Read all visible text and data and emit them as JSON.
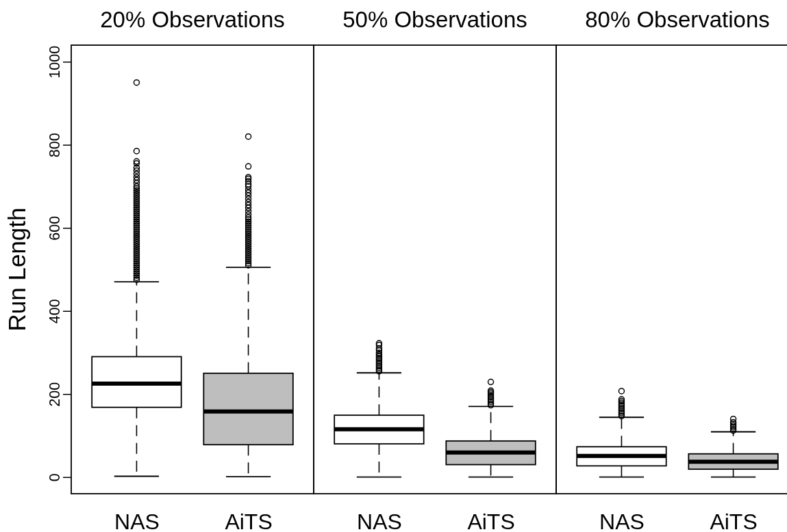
{
  "chart_data": [
    {
      "type": "box",
      "title": "20% Observations",
      "ylabel": "Run Length",
      "categories": [
        "NAS",
        "AiTS"
      ],
      "colors": [
        "#ffffff",
        "#bebebe"
      ],
      "ylim": [
        -40,
        1040
      ],
      "yticks": [
        0,
        200,
        400,
        600,
        800,
        1000
      ],
      "boxes": [
        {
          "low": 2,
          "q1": 168,
          "median": 225,
          "q3": 290,
          "high": 470,
          "outliers": [
            475,
            480,
            485,
            490,
            495,
            500,
            505,
            510,
            515,
            520,
            525,
            530,
            535,
            540,
            545,
            550,
            555,
            560,
            565,
            570,
            575,
            580,
            585,
            590,
            595,
            600,
            605,
            610,
            615,
            620,
            625,
            630,
            635,
            640,
            645,
            650,
            655,
            660,
            665,
            670,
            675,
            680,
            685,
            690,
            695,
            700,
            708,
            715,
            722,
            730,
            738,
            745,
            755,
            760,
            785,
            950
          ]
        },
        {
          "low": 1,
          "q1": 78,
          "median": 158,
          "q3": 250,
          "high": 505,
          "outliers": [
            510,
            515,
            520,
            525,
            530,
            535,
            540,
            545,
            550,
            555,
            560,
            565,
            570,
            575,
            580,
            585,
            590,
            595,
            600,
            605,
            610,
            615,
            620,
            625,
            632,
            640,
            648,
            655,
            662,
            670,
            678,
            685,
            692,
            700,
            705,
            712,
            718,
            722,
            748,
            820
          ]
        }
      ]
    },
    {
      "type": "box",
      "title": "50% Observations",
      "categories": [
        "NAS",
        "AiTS"
      ],
      "colors": [
        "#ffffff",
        "#bebebe"
      ],
      "ylim": [
        -40,
        1040
      ],
      "tick_labels": "x",
      "boxes": [
        {
          "low": 0,
          "q1": 80,
          "median": 115,
          "q3": 149,
          "high": 251,
          "outliers": [
            255,
            259,
            263,
            267,
            271,
            275,
            279,
            283,
            287,
            291,
            295,
            299,
            305,
            310,
            318,
            322
          ]
        },
        {
          "low": 0,
          "q1": 30,
          "median": 59,
          "q3": 87,
          "high": 170,
          "outliers": [
            173,
            177,
            181,
            185,
            189,
            193,
            197,
            201,
            205,
            208,
            229
          ]
        }
      ]
    },
    {
      "type": "box",
      "title": "80% Observations",
      "categories": [
        "NAS",
        "AiTS"
      ],
      "colors": [
        "#ffffff",
        "#bebebe"
      ],
      "ylim": [
        -40,
        1040
      ],
      "tick_labels": "x",
      "boxes": [
        {
          "low": 0,
          "q1": 27,
          "median": 51,
          "q3": 73,
          "high": 144,
          "outliers": [
            147,
            151,
            155,
            159,
            163,
            167,
            171,
            175,
            179,
            183,
            187,
            207
          ]
        },
        {
          "low": 0,
          "q1": 19,
          "median": 37,
          "q3": 56,
          "high": 109,
          "outliers": [
            112,
            116,
            120,
            124,
            128,
            132,
            140
          ]
        }
      ]
    }
  ]
}
